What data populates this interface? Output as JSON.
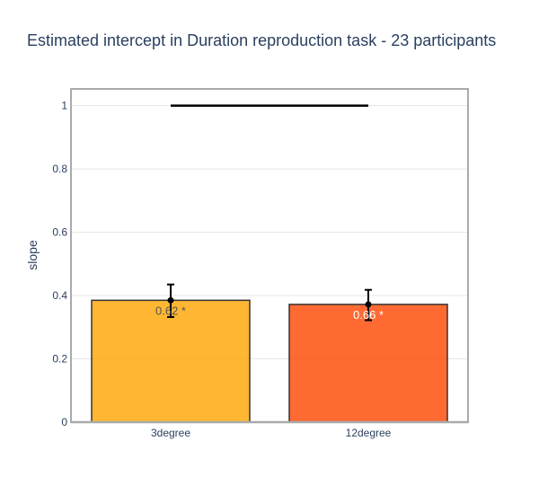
{
  "chart_data": {
    "type": "bar",
    "title": "Estimated intercept in Duration reproduction task - 23 participants",
    "xlabel": "",
    "ylabel": "slope",
    "ylim": [
      0,
      1.05
    ],
    "yticks": [
      0,
      0.2,
      0.4,
      0.6,
      0.8,
      1
    ],
    "ytick_labels": [
      "0",
      "0.2",
      "0.4",
      "0.6",
      "0.8",
      "1"
    ],
    "grid": true,
    "categories": [
      "3degree",
      "12degree"
    ],
    "values": [
      0.385,
      0.372
    ],
    "error_low": [
      0.332,
      0.322
    ],
    "error_high": [
      0.435,
      0.418
    ],
    "point_values": [
      0.385,
      0.372
    ],
    "bar_labels": [
      "0.62 *",
      "0.66 *"
    ],
    "bar_colors": [
      "#ffa500",
      "#ff4500"
    ],
    "bar_label_colors": [
      "#555555",
      "#ffffff"
    ],
    "reference_line": {
      "y": 1,
      "from": "3degree",
      "to": "12degree",
      "color": "#000000"
    }
  }
}
